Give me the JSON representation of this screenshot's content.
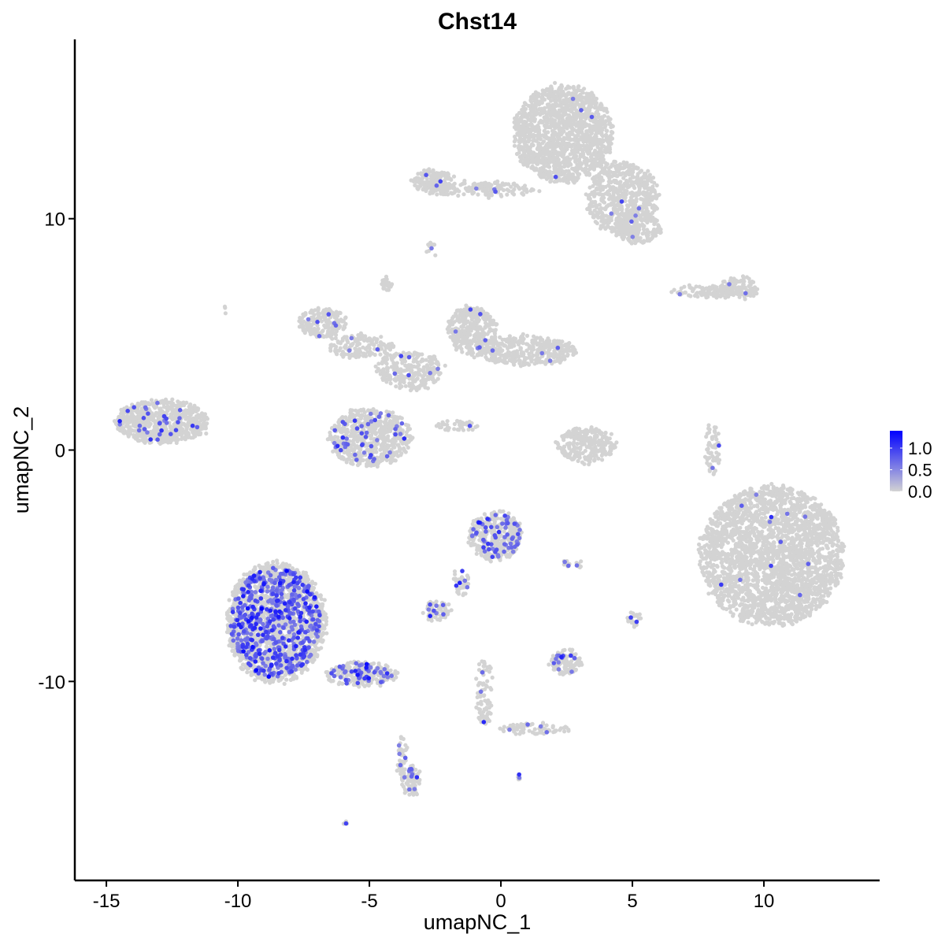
{
  "chart_data": {
    "type": "scatter",
    "title": "Chst14",
    "xlabel": "umapNC_1",
    "ylabel": "umapNC_2",
    "xlim": [
      -16.2,
      14.4
    ],
    "ylim": [
      -18.6,
      17.75
    ],
    "xticks": [
      -15,
      -10,
      -5,
      0,
      5,
      10
    ],
    "yticks": [
      -10,
      0,
      10
    ],
    "grid": false,
    "legend": {
      "placement": "right",
      "type": "colorbar",
      "ticks": [
        "0.0",
        "0.5",
        "1.0"
      ],
      "range": [
        0,
        1.4
      ],
      "low_color": "#d3d3d3",
      "high_color": "#0000ff"
    },
    "clusters": [
      {
        "cx": 2.37,
        "cy": 13.66,
        "rx": 1.8,
        "ry": 2.0,
        "n_cells": 1400,
        "n_expressing": 4
      },
      {
        "cx": 4.6,
        "cy": 10.9,
        "rx": 1.3,
        "ry": 1.5,
        "n_cells": 600,
        "n_expressing": 4
      },
      {
        "cx": -0.78,
        "cy": 11.28,
        "rx": 2.1,
        "ry": 0.3,
        "n_cells": 150,
        "n_expressing": 3
      },
      {
        "cx": -2.57,
        "cy": 11.6,
        "rx": 0.8,
        "ry": 0.5,
        "n_cells": 160,
        "n_expressing": 3
      },
      {
        "cx": 5.2,
        "cy": 9.6,
        "rx": 0.9,
        "ry": 0.6,
        "n_cells": 200,
        "n_expressing": 2
      },
      {
        "cx": -2.66,
        "cy": 8.72,
        "rx": 0.15,
        "ry": 0.3,
        "n_cells": 10,
        "n_expressing": 1
      },
      {
        "cx": 8.2,
        "cy": 6.85,
        "rx": 1.7,
        "ry": 0.25,
        "n_cells": 120,
        "n_expressing": 1
      },
      {
        "cx": 9.1,
        "cy": 7.0,
        "rx": 0.7,
        "ry": 0.4,
        "n_cells": 90,
        "n_expressing": 2
      },
      {
        "cx": -6.77,
        "cy": 5.48,
        "rx": 0.9,
        "ry": 0.6,
        "n_cells": 180,
        "n_expressing": 6
      },
      {
        "cx": -5.27,
        "cy": 4.46,
        "rx": 1.2,
        "ry": 0.5,
        "n_cells": 150,
        "n_expressing": 3
      },
      {
        "cx": -3.47,
        "cy": 3.44,
        "rx": 1.2,
        "ry": 0.8,
        "n_cells": 260,
        "n_expressing": 6
      },
      {
        "cx": -1.08,
        "cy": 5.14,
        "rx": 0.9,
        "ry": 1.0,
        "n_cells": 330,
        "n_expressing": 6
      },
      {
        "cx": 1.02,
        "cy": 4.29,
        "rx": 1.7,
        "ry": 0.6,
        "n_cells": 380,
        "n_expressing": 4
      },
      {
        "cx": -4.97,
        "cy": 0.55,
        "rx": 1.5,
        "ry": 1.2,
        "n_cells": 600,
        "n_expressing": 45
      },
      {
        "cx": -4.37,
        "cy": 7.19,
        "rx": 0.2,
        "ry": 0.3,
        "n_cells": 25,
        "n_expressing": 0
      },
      {
        "cx": -1.68,
        "cy": 1.06,
        "rx": 0.8,
        "ry": 0.2,
        "n_cells": 40,
        "n_expressing": 1
      },
      {
        "cx": -12.9,
        "cy": 1.23,
        "rx": 1.7,
        "ry": 0.9,
        "n_cells": 650,
        "n_expressing": 30
      },
      {
        "cx": 3.26,
        "cy": 0.2,
        "rx": 1.1,
        "ry": 0.7,
        "n_cells": 260,
        "n_expressing": 0
      },
      {
        "cx": 8.05,
        "cy": 0.03,
        "rx": 0.3,
        "ry": 1.0,
        "n_cells": 60,
        "n_expressing": 2
      },
      {
        "cx": 10.3,
        "cy": -4.57,
        "rx": 2.6,
        "ry": 2.9,
        "n_cells": 2600,
        "n_expressing": 12
      },
      {
        "cx": -8.56,
        "cy": -7.46,
        "rx": 1.8,
        "ry": 2.5,
        "n_cells": 1500,
        "n_expressing": 520
      },
      {
        "cx": -5.27,
        "cy": -9.68,
        "rx": 1.3,
        "ry": 0.5,
        "n_cells": 200,
        "n_expressing": 50
      },
      {
        "cx": -3.77,
        "cy": -13.25,
        "rx": 0.15,
        "ry": 1.1,
        "n_cells": 40,
        "n_expressing": 4
      },
      {
        "cx": -3.41,
        "cy": -14.3,
        "rx": 0.3,
        "ry": 0.6,
        "n_cells": 70,
        "n_expressing": 10
      },
      {
        "cx": -0.18,
        "cy": -3.71,
        "rx": 1.0,
        "ry": 1.0,
        "n_cells": 320,
        "n_expressing": 60
      },
      {
        "cx": -1.53,
        "cy": -5.76,
        "rx": 0.3,
        "ry": 0.6,
        "n_cells": 30,
        "n_expressing": 5
      },
      {
        "cx": -2.43,
        "cy": -6.95,
        "rx": 0.5,
        "ry": 0.35,
        "n_cells": 70,
        "n_expressing": 8
      },
      {
        "cx": 2.5,
        "cy": -9.16,
        "rx": 0.6,
        "ry": 0.5,
        "n_cells": 120,
        "n_expressing": 12
      },
      {
        "cx": -0.63,
        "cy": -10.5,
        "rx": 0.3,
        "ry": 1.4,
        "n_cells": 80,
        "n_expressing": 3
      },
      {
        "cx": 1.3,
        "cy": -12.06,
        "rx": 1.3,
        "ry": 0.25,
        "n_cells": 70,
        "n_expressing": 4
      },
      {
        "cx": 5.06,
        "cy": -7.29,
        "rx": 0.25,
        "ry": 0.3,
        "n_cells": 20,
        "n_expressing": 2
      },
      {
        "cx": 2.8,
        "cy": -4.9,
        "rx": 0.5,
        "ry": 0.15,
        "n_cells": 15,
        "n_expressing": 3
      },
      {
        "cx": -5.87,
        "cy": -16.05,
        "rx": 0.1,
        "ry": 0.1,
        "n_cells": 4,
        "n_expressing": 1
      },
      {
        "cx": 0.66,
        "cy": -14.1,
        "rx": 0.1,
        "ry": 0.1,
        "n_cells": 4,
        "n_expressing": 2
      },
      {
        "cx": -10.45,
        "cy": 6.1,
        "rx": 0.1,
        "ry": 0.1,
        "n_cells": 3,
        "n_expressing": 0
      }
    ]
  }
}
